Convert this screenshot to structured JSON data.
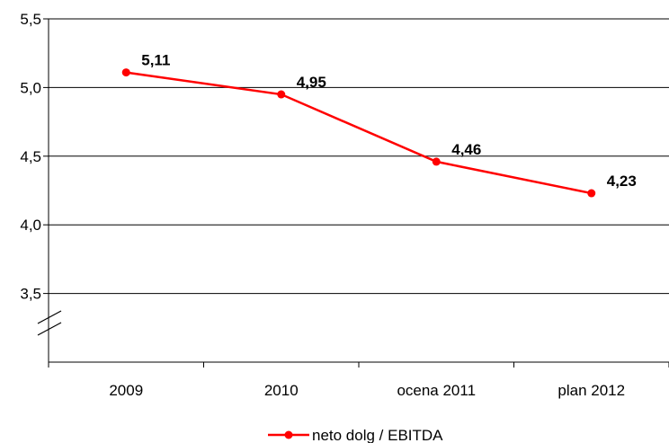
{
  "chart_data": {
    "type": "line",
    "categories": [
      "2009",
      "2010",
      "ocena 2011",
      "plan 2012"
    ],
    "series": [
      {
        "name": "neto dolg / EBITDA",
        "values": [
          5.11,
          4.95,
          4.46,
          4.23
        ],
        "labels": [
          "5,11",
          "4,95",
          "4,46",
          "4,23"
        ],
        "color": "#ff0000"
      }
    ],
    "yticks": [
      {
        "value": 3.5,
        "label": "3,5"
      },
      {
        "value": 4.0,
        "label": "4,0"
      },
      {
        "value": 4.5,
        "label": "4,5"
      },
      {
        "value": 5.0,
        "label": "5,0"
      },
      {
        "value": 5.5,
        "label": "5,5"
      }
    ],
    "ylim": [
      3.0,
      5.5
    ],
    "axis_break": true,
    "grid": "horizontal",
    "legend": "bottom-center",
    "title": "",
    "xlabel": "",
    "ylabel": ""
  }
}
